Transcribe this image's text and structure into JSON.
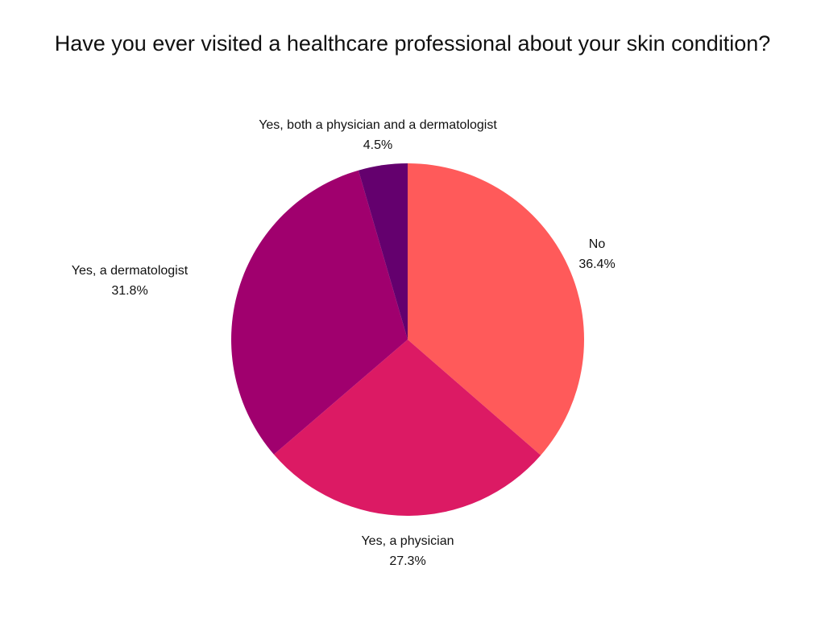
{
  "chart_data": {
    "type": "pie",
    "title": "Have you ever visited a healthcare professional about your skin condition?",
    "slices": [
      {
        "label": "No",
        "value": 36.4,
        "value_label": "36.4%",
        "color": "#FF5A5A"
      },
      {
        "label": "Yes, a physician",
        "value": 27.3,
        "value_label": "27.3%",
        "color": "#DC1A64"
      },
      {
        "label": "Yes, a dermatologist",
        "value": 31.8,
        "value_label": "31.8%",
        "color": "#A0006E"
      },
      {
        "label": "Yes, both a physician and a dermatologist",
        "value": 4.5,
        "value_label": "4.5%",
        "color": "#64006E"
      }
    ],
    "start_angle": "12 o'clock",
    "direction": "clockwise",
    "legend": "none (labels placed outside slices)"
  }
}
